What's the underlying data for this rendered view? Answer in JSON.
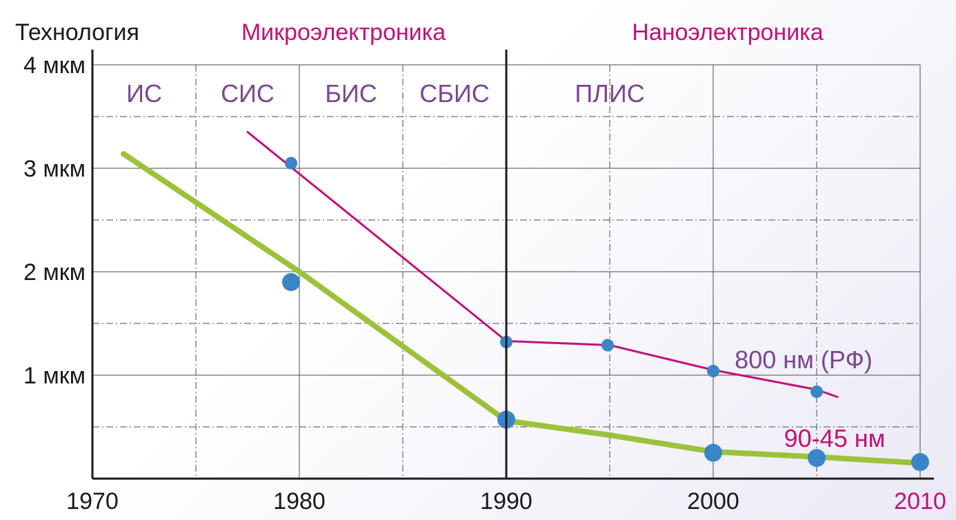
{
  "chart_data": {
    "type": "line",
    "ylabel": "Технология",
    "era_labels": [
      "Микроэлектроника",
      "Наноэлектроника"
    ],
    "era_boundary_x": 1990,
    "phases": [
      {
        "label": "ИС",
        "x_start": 1970,
        "x_end": 1975
      },
      {
        "label": "СИС",
        "x_start": 1975,
        "x_end": 1980
      },
      {
        "label": "БИС",
        "x_start": 1980,
        "x_end": 1985
      },
      {
        "label": "СБИС",
        "x_start": 1985,
        "x_end": 1990
      },
      {
        "label": "ПЛИС",
        "x_start": 1990,
        "x_end": 2000
      }
    ],
    "xlim": [
      1970,
      2010
    ],
    "ylim": [
      0,
      4
    ],
    "x_ticks": [
      {
        "value": 1970,
        "label": "1970"
      },
      {
        "value": 1980,
        "label": "1980"
      },
      {
        "value": 1990,
        "label": "1990"
      },
      {
        "value": 2000,
        "label": "2000"
      },
      {
        "value": 2010,
        "label": "2010"
      }
    ],
    "y_ticks": [
      {
        "value": 1,
        "label": "1 мкм"
      },
      {
        "value": 2,
        "label": "2 мкм"
      },
      {
        "value": 3,
        "label": "3 мкм"
      },
      {
        "value": 4,
        "label": "4 мкм"
      }
    ],
    "grid": true,
    "series": [
      {
        "name": "800 нм (РФ)",
        "color": "#c0107a",
        "label_color": "#7b4594",
        "line": [
          [
            1977.5,
            3.35
          ],
          [
            1990,
            1.33
          ],
          [
            1995,
            1.29
          ],
          [
            2000,
            1.05
          ],
          [
            2005,
            0.86
          ],
          [
            2006,
            0.79
          ]
        ],
        "points": [
          [
            1979.6,
            3.05
          ],
          [
            1990,
            1.32
          ],
          [
            1994.9,
            1.29
          ],
          [
            2000,
            1.04
          ],
          [
            2005,
            0.84
          ]
        ]
      },
      {
        "name": "90-45 нм",
        "color": "#9cc23c",
        "label_color": "#c0107a",
        "line": [
          [
            1971.5,
            3.14
          ],
          [
            1980,
            2.0
          ],
          [
            1990,
            0.56
          ],
          [
            1995,
            0.42
          ],
          [
            2000,
            0.26
          ],
          [
            2005,
            0.21
          ],
          [
            2010,
            0.15
          ]
        ],
        "points": [
          [
            1979.6,
            1.9
          ],
          [
            1990,
            0.57
          ],
          [
            2000,
            0.25
          ],
          [
            2005,
            0.2
          ],
          [
            2010,
            0.16
          ]
        ]
      }
    ]
  }
}
